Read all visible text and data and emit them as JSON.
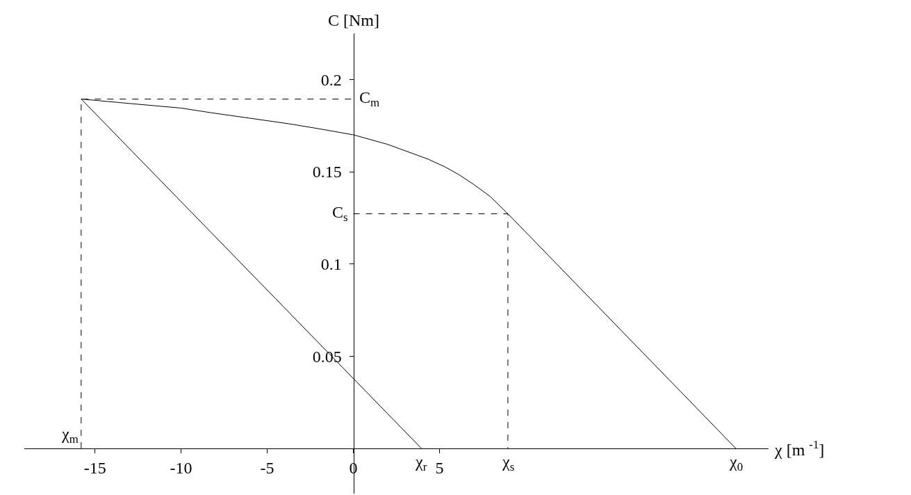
{
  "chart_data": {
    "type": "line",
    "xlabel": "χ [m $^{-1}$]",
    "ylabel": "C [Nm]",
    "xlim": [
      -19.1,
      24.1
    ],
    "ylim": [
      -0.0245,
      0.225
    ],
    "xticks": [
      -15,
      -10,
      -5,
      0,
      5
    ],
    "yticks": [
      0.05,
      0.1,
      0.15,
      0.2
    ],
    "marker": "none",
    "series": [
      {
        "color": "#000000",
        "line_style": "solid",
        "x": [
          -15.8,
          -13,
          -10,
          -8.27,
          -6,
          -3.75,
          -2,
          0,
          2,
          4.34,
          5.3,
          6.13,
          7,
          7.94,
          8.97,
          22.2
        ],
        "values": [
          0.1894,
          0.187,
          0.1845,
          0.182,
          0.179,
          0.176,
          0.1733,
          0.17,
          0.1648,
          0.1568,
          0.1527,
          0.1484,
          0.143,
          0.1366,
          0.1272,
          0
        ]
      },
      {
        "color": "#000000",
        "line_style": "solid",
        "x": [
          -15.8,
          3.95
        ],
        "values": [
          0.1894,
          0
        ]
      },
      {
        "color": "#000000",
        "line_style": "dashed",
        "x": [
          -15.8,
          -15.8,
          0
        ],
        "values": [
          0,
          0.1894,
          0.1894
        ]
      },
      {
        "color": "#000000",
        "line_style": "dashed",
        "x": [
          0,
          8.97,
          8.97
        ],
        "values": [
          0.1272,
          0.1272,
          0
        ]
      }
    ],
    "annotations": [
      {
        "text": "χ$_{m}$",
        "x": -15.8,
        "y": 0
      },
      {
        "text": "χ$_{r}$",
        "x": 3.95,
        "y": 0
      },
      {
        "text": "χ$_{s}$",
        "x": 8.97,
        "y": 0
      },
      {
        "text": "χ$_{0}$",
        "x": 22.2,
        "y": 0
      },
      {
        "text": "C$_{m}$",
        "x": 0,
        "y": 0.1894
      },
      {
        "text": "C$_{s}$",
        "x": 0,
        "y": 0.1272
      }
    ]
  }
}
